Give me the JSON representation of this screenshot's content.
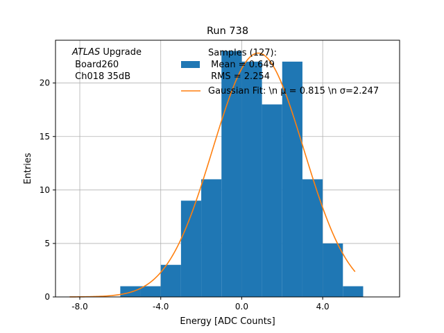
{
  "chart_data": {
    "type": "bar",
    "title": "Run 738",
    "xlabel": "Energy [ADC Counts]",
    "ylabel": "Entries",
    "xlim": [
      -9.2,
      7.8
    ],
    "ylim": [
      0,
      24
    ],
    "grid": true,
    "x_ticks": [
      -8.0,
      -4.0,
      0.0,
      4.0
    ],
    "x_tick_labels": [
      "-8.0",
      "-4.0",
      "0.0",
      "4.0"
    ],
    "y_ticks": [
      0,
      5,
      10,
      15,
      20
    ],
    "y_tick_labels": [
      "0",
      "5",
      "10",
      "15",
      "20"
    ],
    "histogram": {
      "bin_edges": [
        -6.0,
        -5.0,
        -4.0,
        -3.0,
        -2.0,
        -1.0,
        0.0,
        1.0,
        2.0,
        3.0,
        4.0,
        5.0,
        6.0
      ],
      "counts": [
        1,
        1,
        3,
        9,
        11,
        23,
        22,
        18,
        22,
        11,
        5,
        1
      ],
      "color": "#1f77b4"
    },
    "fit": {
      "mu": 0.815,
      "sigma": 2.247,
      "peak": 22.8,
      "x_range": [
        -8.5,
        5.6
      ],
      "color": "#ff7f0e"
    },
    "legend": {
      "placement": "top-center",
      "entries": [
        {
          "label": "Samples (127):\n Mean = 0.649\n RMS = 2.254",
          "color": "#1f77b4",
          "marker": "patch"
        },
        {
          "label": "Gaussian Fit: \\n μ = 0.815 \\n σ=2.247",
          "color": "#ff7f0e",
          "marker": "line"
        }
      ]
    },
    "annotation": {
      "atlas": "ATLAS",
      "upgrade": " Upgrade",
      "line2": " Board260",
      "line3": " Ch018 35dB"
    }
  }
}
